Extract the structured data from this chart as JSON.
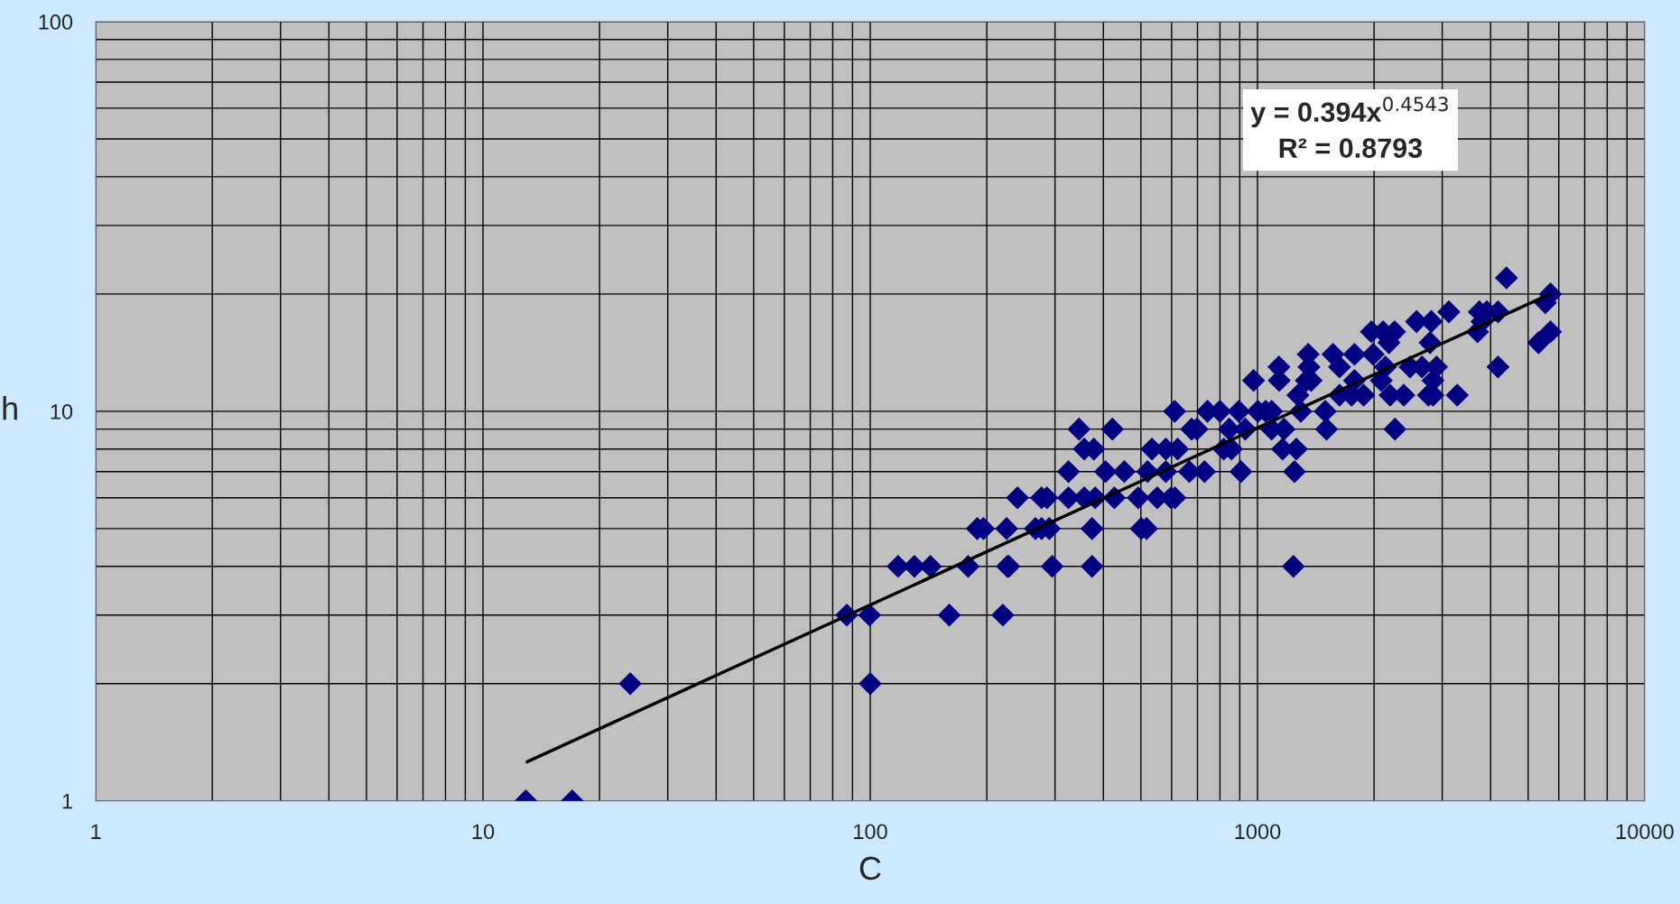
{
  "chart_data": {
    "type": "scatter",
    "xlabel": "C",
    "ylabel": "h",
    "log": "xy",
    "xlim": [
      1,
      10000
    ],
    "ylim": [
      1,
      100
    ],
    "xticks": [
      1,
      10,
      100,
      1000,
      10000
    ],
    "yticks": [
      1,
      10,
      100
    ],
    "grid": true,
    "legend": false,
    "annotations": [
      "y = 0.394x$^{0.4543}$",
      "R² = 0.8793"
    ],
    "series": [
      {
        "marker": "diamond",
        "color": "#000080",
        "x": [
          12.9,
          17,
          24,
          100,
          87,
          99.6,
          160,
          220,
          118,
          130,
          143,
          179,
          226,
          228,
          295,
          374,
          1238,
          189,
          196,
          225,
          267,
          277,
          290,
          374,
          501,
          517,
          240,
          277,
          286,
          325,
          357,
          381,
          427,
          492,
          551,
          598,
          612,
          325,
          405,
          453,
          520,
          580,
          667,
          730,
          906,
          1246,
          357,
          378,
          534,
          580,
          622,
          818,
          857,
          1161,
          1260,
          346,
          422,
          676,
          698,
          845,
          930,
          1088,
          1171,
          1508,
          2265,
          611,
          743,
          800,
          895,
          1002,
          1050,
          1088,
          1294,
          1496,
          1272,
          1629,
          1750,
          1880,
          2200,
          2387,
          2763,
          2840,
          3280,
          977,
          1138,
          1337,
          1376,
          1780,
          2088,
          2840,
          1136,
          1358,
          1629,
          2140,
          2478,
          2660,
          2900,
          4180,
          1352,
          1567,
          1780,
          1990,
          2185,
          2790,
          5320,
          1969,
          2110,
          2260,
          3700,
          5710,
          2575,
          2810,
          3800,
          3120,
          3740,
          3910,
          4180,
          5540,
          5710,
          4395
        ],
        "values": [
          1,
          1,
          2,
          2,
          3,
          3,
          3,
          3,
          4,
          4,
          4,
          4,
          4,
          4,
          4,
          4,
          4,
          5,
          5,
          5,
          5,
          5,
          5,
          5,
          5,
          5,
          6,
          6,
          6,
          6,
          6,
          6,
          6,
          6,
          6,
          6,
          6,
          7,
          7,
          7,
          7,
          7,
          7,
          7,
          7,
          7,
          8,
          8,
          8,
          8,
          8,
          8,
          8,
          8,
          8,
          9,
          9,
          9,
          9,
          9,
          9,
          9,
          9,
          9,
          9,
          10,
          10,
          10,
          10,
          10,
          10,
          10,
          10,
          10,
          11,
          11,
          11,
          11,
          11,
          11,
          11,
          11,
          11,
          12,
          12,
          12,
          12,
          12,
          12,
          12,
          13,
          13,
          13,
          13,
          13,
          13,
          13,
          13,
          14,
          14,
          14,
          14,
          15,
          15,
          15,
          16,
          16,
          16,
          16,
          16,
          17,
          17,
          17,
          18,
          18,
          18,
          18,
          19,
          20,
          22
        ]
      },
      {
        "type": "line",
        "marker": "none",
        "color": "#000000",
        "x": [
          13,
          5700
        ],
        "values": [
          1.26,
          20.0
        ]
      }
    ]
  }
}
